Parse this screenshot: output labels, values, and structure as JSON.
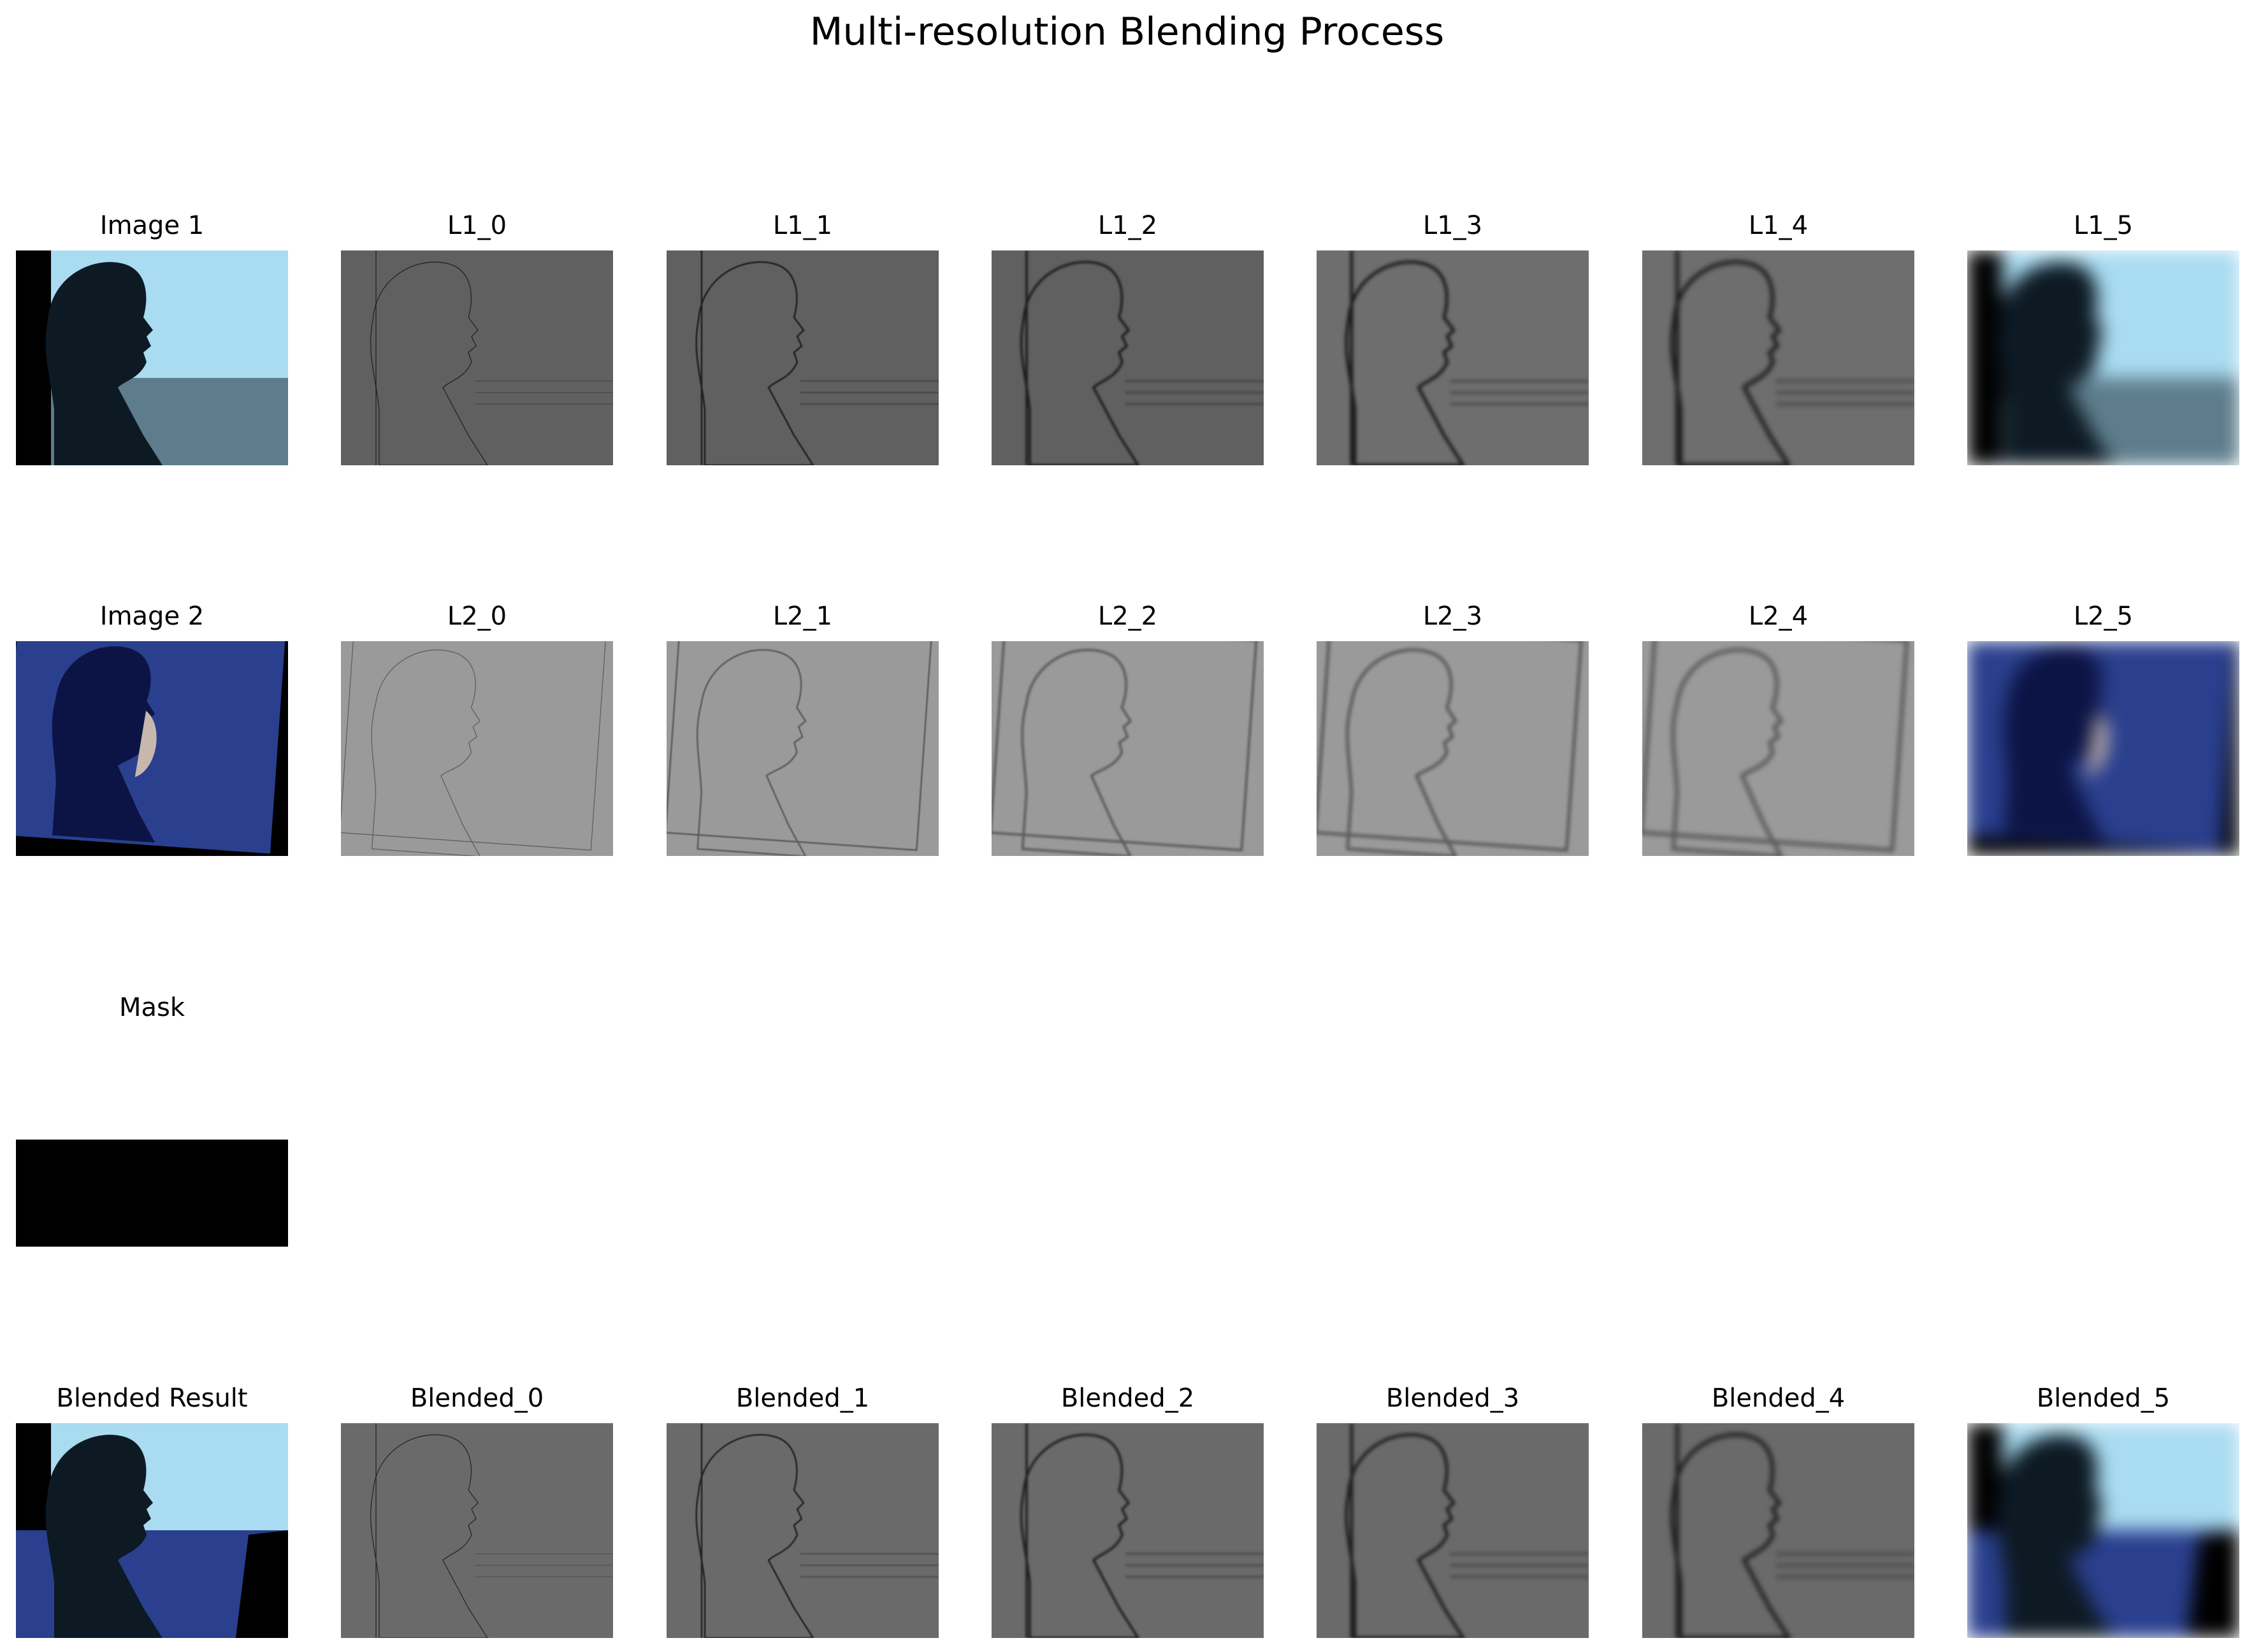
{
  "figure": {
    "title": "Multi-resolution Blending Process"
  },
  "rows": {
    "image1": [
      "Image 1",
      "L1_0",
      "L1_1",
      "L1_2",
      "L1_3",
      "L1_4",
      "L1_5"
    ],
    "image2": [
      "Image 2",
      "L2_0",
      "L2_1",
      "L2_2",
      "L2_3",
      "L2_4",
      "L2_5"
    ],
    "mask": [
      "Mask"
    ],
    "blended": [
      "Blended Result",
      "Blended_0",
      "Blended_1",
      "Blended_2",
      "Blended_3",
      "Blended_4",
      "Blended_5"
    ]
  },
  "colors": {
    "sky": "#a9dbf1",
    "sea": "#5d7d8c",
    "subject_dark": "#0d1a24",
    "image2_blue": "#2a3f8e",
    "laplacian_gray_dark": "#606060",
    "laplacian_gray_light": "#9a9a9a",
    "mask_black": "#000000"
  }
}
